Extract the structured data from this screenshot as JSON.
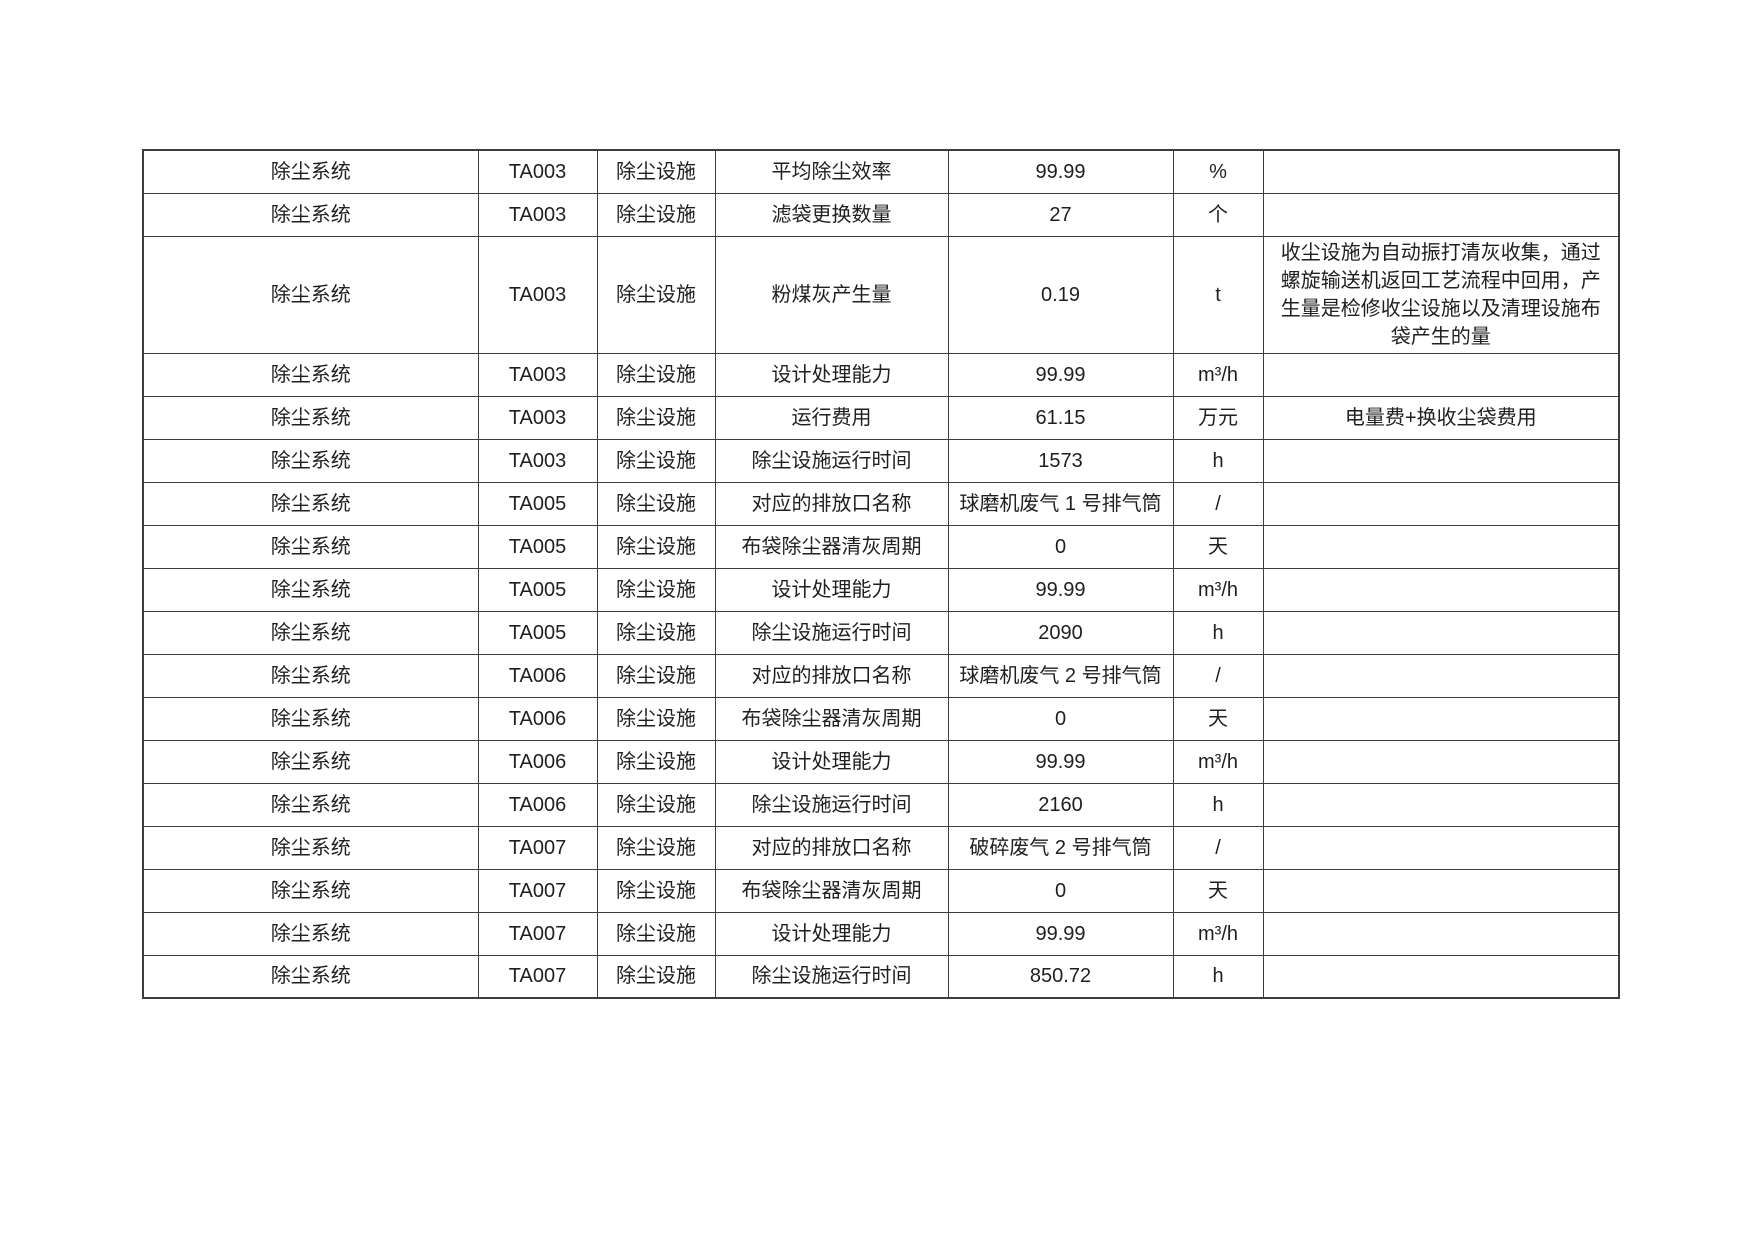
{
  "page": {
    "background_color": "#ffffff",
    "text_color": "#1f1f1f",
    "border_color": "#3d3d3d"
  },
  "table": {
    "rows": [
      {
        "system": "除尘系统",
        "code": "TA003",
        "facility": "除尘设施",
        "parameter": "平均除尘效率",
        "value": "99.99",
        "unit": "%",
        "remark": ""
      },
      {
        "system": "除尘系统",
        "code": "TA003",
        "facility": "除尘设施",
        "parameter": "滤袋更换数量",
        "value": "27",
        "unit": "个",
        "remark": ""
      },
      {
        "system": "除尘系统",
        "code": "TA003",
        "facility": "除尘设施",
        "parameter": "粉煤灰产生量",
        "value": "0.19",
        "unit": "t",
        "remark": "收尘设施为自动振打清灰收集，通过螺旋输送机返回工艺流程中回用，产生量是检修收尘设施以及清理设施布袋产生的量"
      },
      {
        "system": "除尘系统",
        "code": "TA003",
        "facility": "除尘设施",
        "parameter": "设计处理能力",
        "value": "99.99",
        "unit": "m³/h",
        "remark": ""
      },
      {
        "system": "除尘系统",
        "code": "TA003",
        "facility": "除尘设施",
        "parameter": "运行费用",
        "value": "61.15",
        "unit": "万元",
        "remark": "电量费+换收尘袋费用"
      },
      {
        "system": "除尘系统",
        "code": "TA003",
        "facility": "除尘设施",
        "parameter": "除尘设施运行时间",
        "value": "1573",
        "unit": "h",
        "remark": ""
      },
      {
        "system": "除尘系统",
        "code": "TA005",
        "facility": "除尘设施",
        "parameter": "对应的排放口名称",
        "value": "球磨机废气 1 号排气筒",
        "unit": "/",
        "remark": ""
      },
      {
        "system": "除尘系统",
        "code": "TA005",
        "facility": "除尘设施",
        "parameter": "布袋除尘器清灰周期",
        "value": "0",
        "unit": "天",
        "remark": ""
      },
      {
        "system": "除尘系统",
        "code": "TA005",
        "facility": "除尘设施",
        "parameter": "设计处理能力",
        "value": "99.99",
        "unit": "m³/h",
        "remark": ""
      },
      {
        "system": "除尘系统",
        "code": "TA005",
        "facility": "除尘设施",
        "parameter": "除尘设施运行时间",
        "value": "2090",
        "unit": "h",
        "remark": ""
      },
      {
        "system": "除尘系统",
        "code": "TA006",
        "facility": "除尘设施",
        "parameter": "对应的排放口名称",
        "value": "球磨机废气 2 号排气筒",
        "unit": "/",
        "remark": ""
      },
      {
        "system": "除尘系统",
        "code": "TA006",
        "facility": "除尘设施",
        "parameter": "布袋除尘器清灰周期",
        "value": "0",
        "unit": "天",
        "remark": ""
      },
      {
        "system": "除尘系统",
        "code": "TA006",
        "facility": "除尘设施",
        "parameter": "设计处理能力",
        "value": "99.99",
        "unit": "m³/h",
        "remark": ""
      },
      {
        "system": "除尘系统",
        "code": "TA006",
        "facility": "除尘设施",
        "parameter": "除尘设施运行时间",
        "value": "2160",
        "unit": "h",
        "remark": ""
      },
      {
        "system": "除尘系统",
        "code": "TA007",
        "facility": "除尘设施",
        "parameter": "对应的排放口名称",
        "value": "破碎废气 2 号排气筒",
        "unit": "/",
        "remark": ""
      },
      {
        "system": "除尘系统",
        "code": "TA007",
        "facility": "除尘设施",
        "parameter": "布袋除尘器清灰周期",
        "value": "0",
        "unit": "天",
        "remark": ""
      },
      {
        "system": "除尘系统",
        "code": "TA007",
        "facility": "除尘设施",
        "parameter": "设计处理能力",
        "value": "99.99",
        "unit": "m³/h",
        "remark": ""
      },
      {
        "system": "除尘系统",
        "code": "TA007",
        "facility": "除尘设施",
        "parameter": "除尘设施运行时间",
        "value": "850.72",
        "unit": "h",
        "remark": ""
      }
    ]
  }
}
